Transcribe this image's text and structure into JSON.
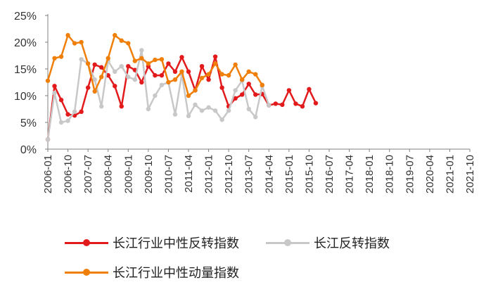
{
  "chart_data": {
    "type": "line",
    "title": "",
    "xlabel": "",
    "ylabel": "",
    "ylim": [
      0,
      25
    ],
    "yticks": [
      "0%",
      "5%",
      "10%",
      "15%",
      "20%",
      "25%"
    ],
    "ytick_values": [
      0,
      5,
      10,
      15,
      20,
      25
    ],
    "x_start": "2006-01",
    "x_step_months": 3,
    "x_labels": [
      "2006-01",
      "2006-10",
      "2007-07",
      "2008-04",
      "2009-01",
      "2009-10",
      "2010-07",
      "2011-04",
      "2012-01",
      "2012-10",
      "2013-07",
      "2014-04",
      "2015-01",
      "2015-10",
      "2016-07",
      "2017-04",
      "2018-01",
      "2018-10",
      "2019-07",
      "2020-04",
      "2021-01",
      "2021-10"
    ],
    "series": [
      {
        "name": "长江行业中性反转指数",
        "color": "#e31a1c",
        "values": [
          1.8,
          11.8,
          9.2,
          6.5,
          6.3,
          7.0,
          11.5,
          15.8,
          15.3,
          13.8,
          11.8,
          8.0,
          15.5,
          14.8,
          12.5,
          15.5,
          13.8,
          13.8,
          16.0,
          14.5,
          17.2,
          14.5,
          11.0,
          15.5,
          13.0,
          17.3,
          11.5,
          8.0,
          9.5,
          10.2,
          12.2,
          10.2,
          10.3,
          8.2,
          8.5,
          8.3,
          11.0,
          8.5,
          8.0,
          11.2,
          8.6
        ]
      },
      {
        "name": "长江反转指数",
        "color": "#c8c8c8",
        "values": [
          1.8,
          10.5,
          5.0,
          5.3,
          7.0,
          16.8,
          16.0,
          13.0,
          8.0,
          16.5,
          14.5,
          15.5,
          13.5,
          13.0,
          18.5,
          7.5,
          10.0,
          12.0,
          12.5,
          6.5,
          14.0,
          6.2,
          8.3,
          7.2,
          7.8,
          7.2,
          5.5,
          7.2,
          11.0,
          12.8,
          7.5,
          6.0,
          11.8,
          8.2
        ]
      },
      {
        "name": "长江行业中性动量指数",
        "color": "#f07f09",
        "values": [
          12.8,
          17.0,
          17.3,
          21.3,
          19.8,
          20.0,
          16.0,
          10.8,
          13.5,
          17.0,
          21.3,
          20.3,
          19.8,
          16.5,
          17.0,
          16.0,
          16.7,
          16.8,
          12.5,
          13.0,
          14.5,
          10.0,
          11.0,
          13.3,
          14.0,
          16.0,
          14.0,
          13.8,
          15.8,
          13.0,
          14.5,
          14.0,
          12.0
        ]
      }
    ]
  }
}
